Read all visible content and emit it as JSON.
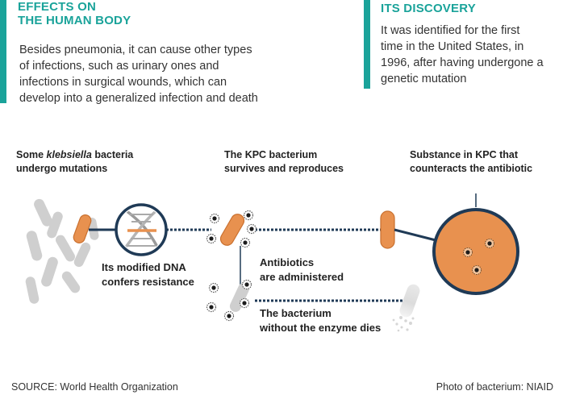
{
  "effects": {
    "title_line1": "EFFECTS ON",
    "title_line2": "THE HUMAN BODY",
    "body_lines": [
      "Besides pneumonia, it can cause other types",
      "of infections, such as urinary ones and",
      "infections in surgical wounds, which can",
      "develop into a generalized infection and death"
    ]
  },
  "discovery": {
    "title": "ITS DISCOVERY",
    "body_lines": [
      "It was identified for the first",
      "time in the United States, in",
      "1996, after having undergone a",
      "genetic mutation"
    ]
  },
  "steps": {
    "step1_prefix": "Some",
    "step1_italic": "klebsiella",
    "step1_suffix": "bacteria",
    "step1_line2": "undergo mutations",
    "step2_line1": "The KPC bacterium",
    "step2_line2": "survives and reproduces",
    "step3_line1": "Substance in KPC that",
    "step3_line2": "counteracts the antibiotic"
  },
  "notes": {
    "dna_line1": "Its modified DNA",
    "dna_line2": "confers resistance",
    "antibiotics_line1": "Antibiotics",
    "antibiotics_line2": "are administered",
    "dies_line1": "The bacterium",
    "dies_line2": "without the enzyme dies"
  },
  "footer": {
    "source": "SOURCE: World Health Organization",
    "photo": "Photo of bacterium: NIAID"
  },
  "colors": {
    "teal": "#1aa39a",
    "orange": "#e8914f",
    "navy": "#1f3a56",
    "gray": "#cfcfcf"
  },
  "icons": [
    "dna-icon",
    "bacterium-icon",
    "antibiotic-particle-icon",
    "magnified-cell-icon"
  ]
}
